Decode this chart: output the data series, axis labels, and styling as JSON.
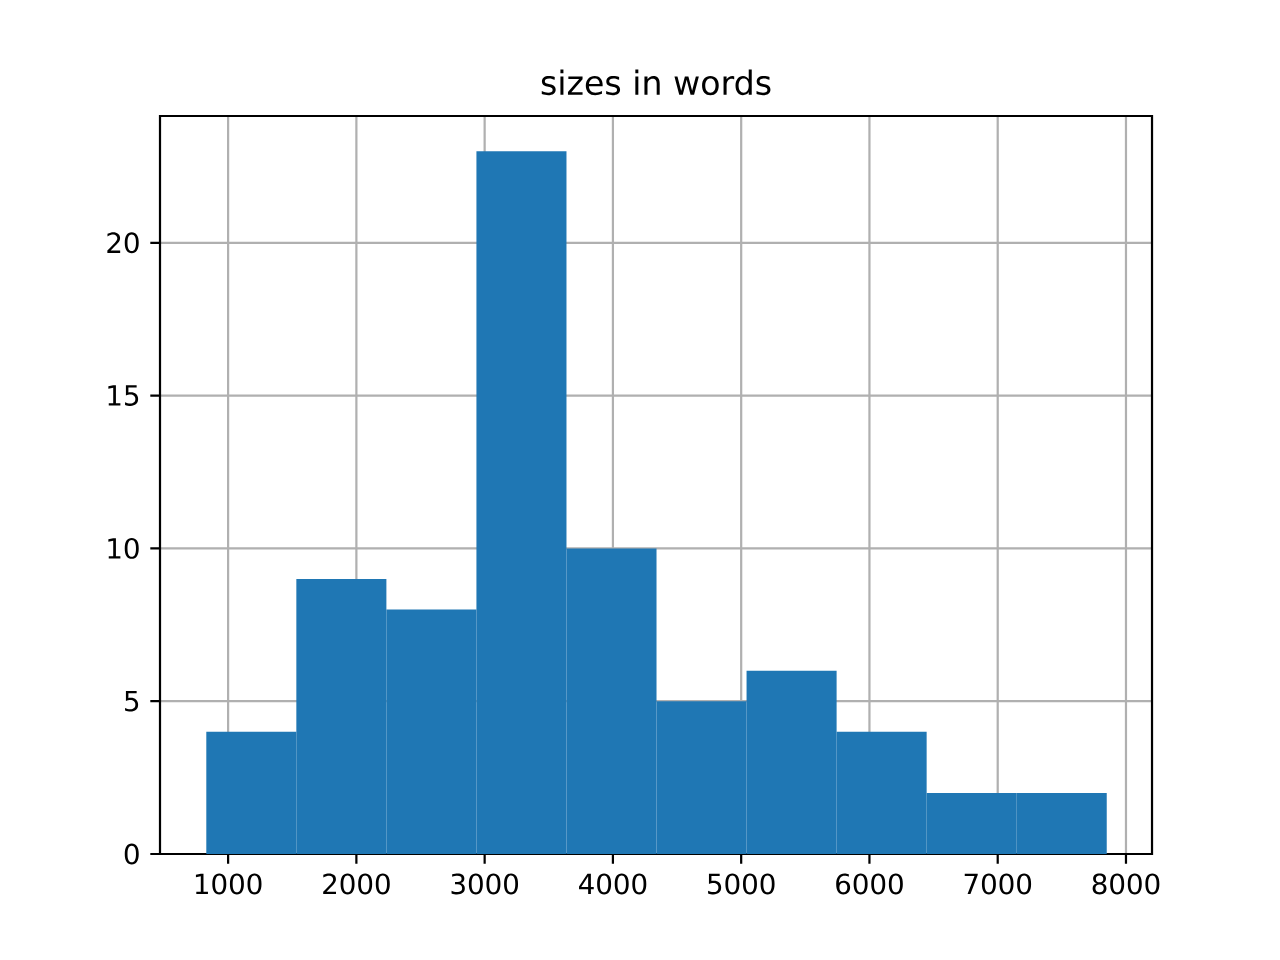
{
  "chart_data": {
    "type": "histogram",
    "title": "sizes in words",
    "bins": [
      830,
      1532,
      2234,
      2936,
      3638,
      4340,
      5042,
      5744,
      6446,
      7148,
      7850
    ],
    "values": [
      4,
      9,
      8,
      23,
      10,
      5,
      6,
      4,
      2,
      2
    ],
    "color": "#1f77b4",
    "xlim": [
      469,
      8203
    ],
    "ylim": [
      0,
      24.15
    ],
    "xticks": [
      1000,
      2000,
      3000,
      4000,
      5000,
      6000,
      7000,
      8000
    ],
    "yticks": [
      0,
      5,
      10,
      15,
      20
    ],
    "grid": true
  }
}
